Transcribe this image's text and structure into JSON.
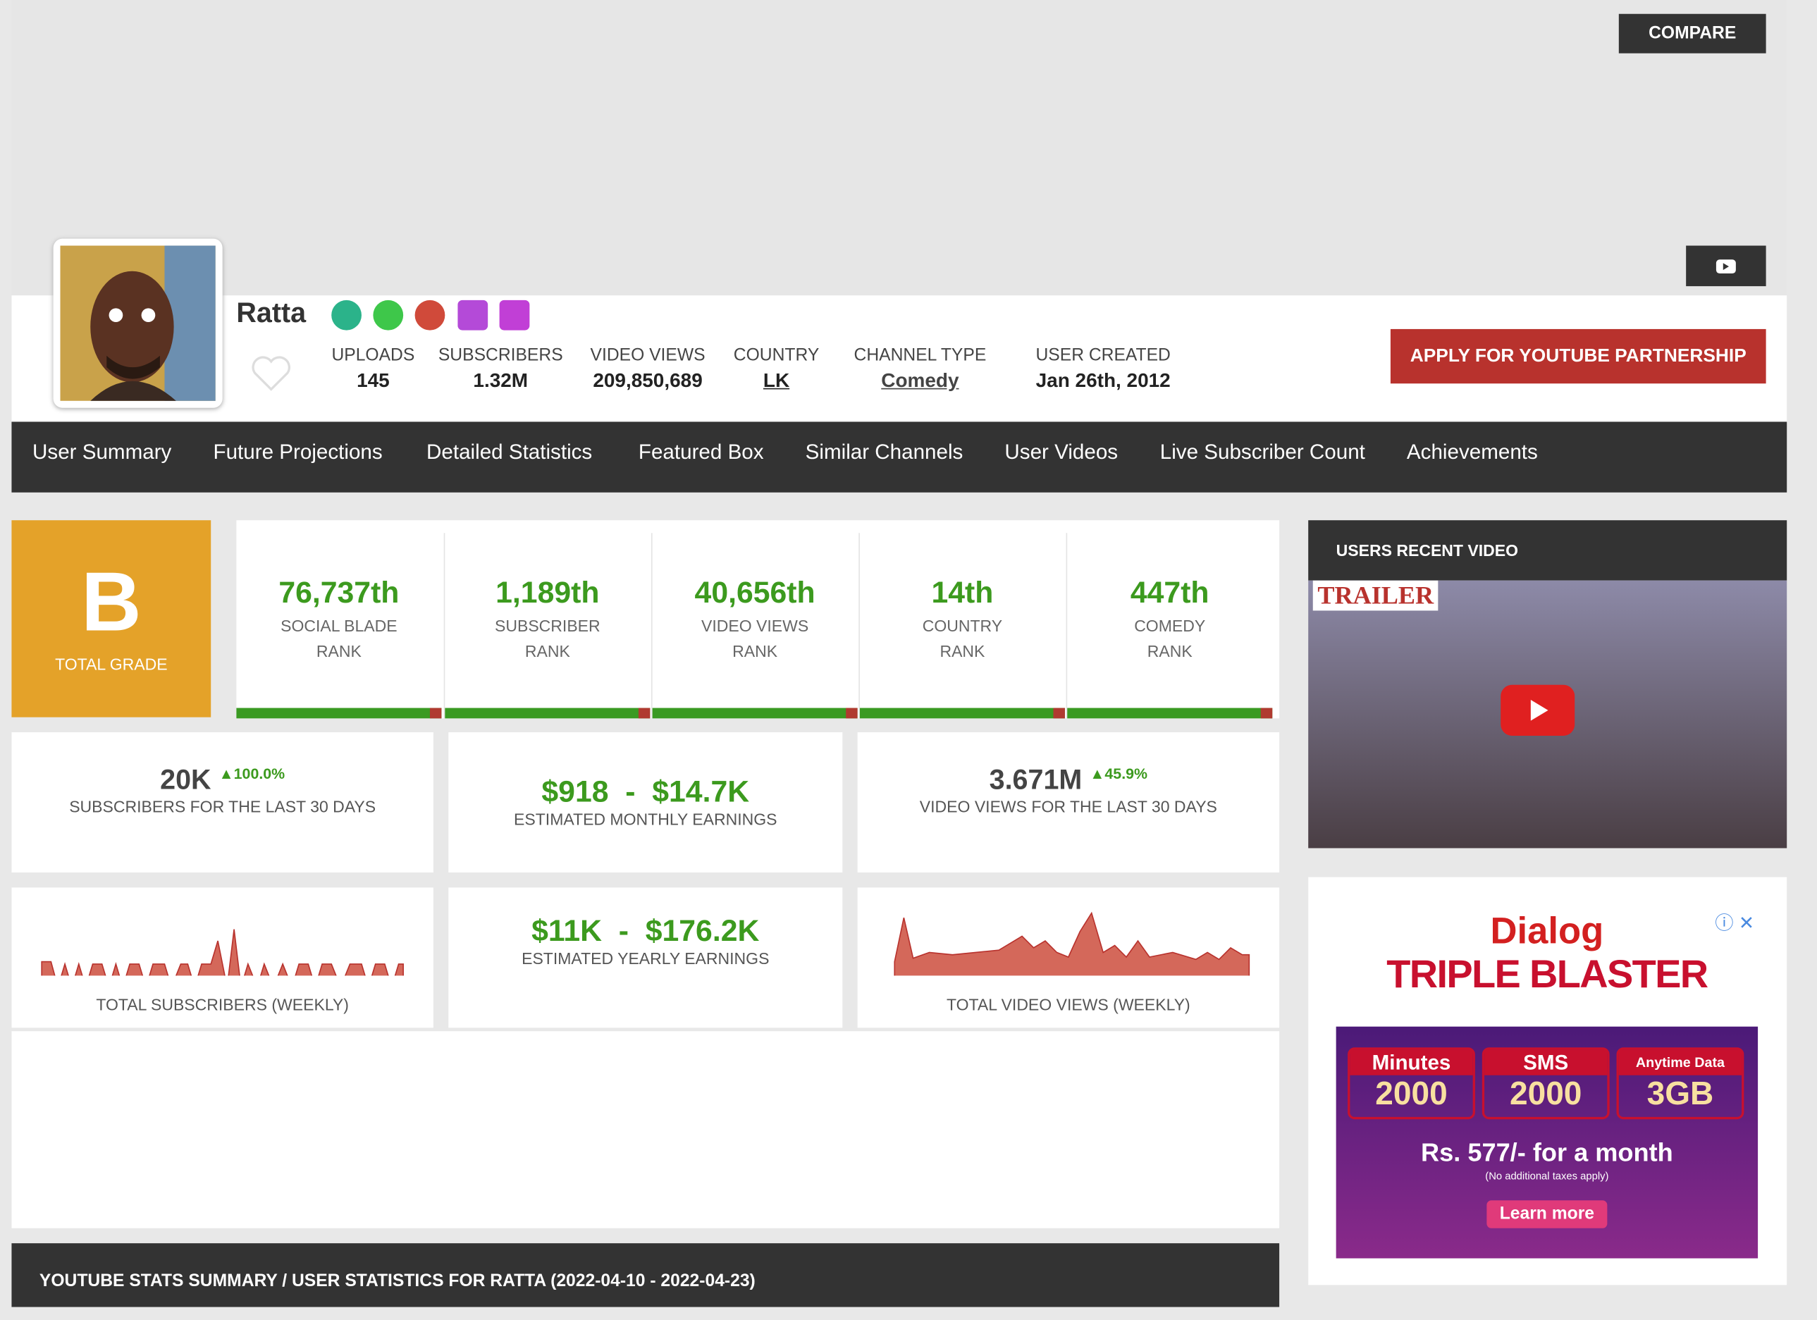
{
  "header": {
    "compare": "COMPARE",
    "name": "Ratta",
    "apply": "APPLY FOR YOUTUBE PARTNERSHIP"
  },
  "stats": {
    "uploads_label": "UPLOADS",
    "uploads": "145",
    "subscribers_label": "SUBSCRIBERS",
    "subscribers": "1.32M",
    "views_label": "VIDEO VIEWS",
    "views": "209,850,689",
    "country_label": "COUNTRY",
    "country": "LK",
    "type_label": "CHANNEL TYPE",
    "type": "Comedy",
    "created_label": "USER CREATED",
    "created": "Jan 26th, 2012"
  },
  "nav": [
    "User Summary",
    "Future Projections",
    "Detailed Statistics",
    "Featured Box",
    "Similar Channels",
    "User Videos",
    "Live Subscriber Count",
    "Achievements"
  ],
  "grade": {
    "letter": "B",
    "label": "TOTAL GRADE"
  },
  "ranks": [
    {
      "rank": "76,737th",
      "line1": "SOCIAL BLADE",
      "line2": "RANK"
    },
    {
      "rank": "1,189th",
      "line1": "SUBSCRIBER",
      "line2": "RANK"
    },
    {
      "rank": "40,656th",
      "line1": "VIDEO VIEWS",
      "line2": "RANK"
    },
    {
      "rank": "14th",
      "line1": "COUNTRY",
      "line2": "RANK"
    },
    {
      "rank": "447th",
      "line1": "COMEDY",
      "line2": "RANK"
    }
  ],
  "cards": {
    "subs_value": "20K",
    "subs_change": "100.0%",
    "subs_label": "SUBSCRIBERS FOR THE LAST 30 DAYS",
    "monthly": "$918  -  $14.7K",
    "monthly_label": "ESTIMATED MONTHLY EARNINGS",
    "views_value": "3.671M",
    "views_change": "45.9%",
    "views_label": "VIDEO VIEWS FOR THE LAST 30 DAYS",
    "subs_chart_label": "TOTAL SUBSCRIBERS (WEEKLY)",
    "yearly": "$11K  -  $176.2K",
    "yearly_label": "ESTIMATED YEARLY EARNINGS",
    "views_chart_label": "TOTAL VIDEO VIEWS (WEEKLY)"
  },
  "recent_video": {
    "title": "USERS RECENT VIDEO",
    "thumb_text": "TRAILER"
  },
  "ad": {
    "brand": "Dialog",
    "headline": "TRIPLE BLASTER",
    "offers": [
      {
        "label": "Minutes",
        "value": "2000"
      },
      {
        "label": "SMS",
        "value": "2000"
      },
      {
        "label": "Anytime Data",
        "value": "3GB"
      }
    ],
    "price": "Rs. 577/-  for a month",
    "note": "(No additional taxes apply)",
    "cta": "Learn more"
  },
  "summary": "YOUTUBE STATS SUMMARY / USER STATISTICS FOR RATTA (2022-04-10 - 2022-04-23)"
}
